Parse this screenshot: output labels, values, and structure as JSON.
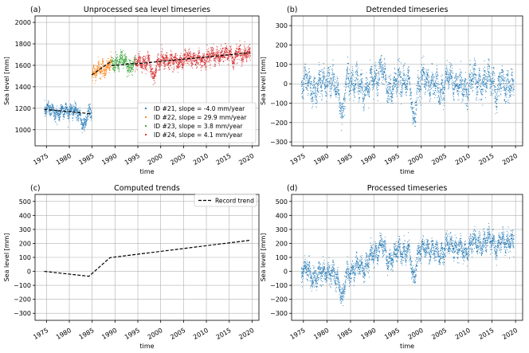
{
  "colors": {
    "series21": "#1f77b4",
    "series22": "#ff7f0e",
    "series23": "#2ca02c",
    "series24": "#d62728",
    "scatter": "#1f77b4",
    "trend": "#000000",
    "grid": "#b0b0b0"
  },
  "chart_data": [
    {
      "panel": "a",
      "type": "scatter",
      "label": "(a)",
      "title": "Unprocessed sea level timeseries",
      "xlabel": "time",
      "ylabel": "Sea level [mm]",
      "xlim": [
        1972.5,
        2021.5
      ],
      "ylim": [
        850,
        2060
      ],
      "xticks": [
        1975,
        1980,
        1985,
        1990,
        1995,
        2000,
        2005,
        2010,
        2015,
        2020
      ],
      "yticks": [
        1000,
        1200,
        1400,
        1600,
        1800,
        2000
      ],
      "grid": true,
      "legend_position": "lower-right",
      "series": [
        {
          "name": "ID #21, slope = -4.0 mm/year",
          "color_key": "series21",
          "x_range": [
            1974.5,
            1984.8
          ],
          "trend_start": 1190,
          "slope": -4.0,
          "noise": 55
        },
        {
          "name": "ID #22, slope = 29.9 mm/year",
          "color_key": "series22",
          "x_range": [
            1984.9,
            1989.2
          ],
          "trend_start": 1510,
          "slope": 29.9,
          "noise": 60
        },
        {
          "name": "ID #23, slope =  3.8 mm/year",
          "color_key": "series23",
          "x_range": [
            1989.2,
            1994.3
          ],
          "trend_start": 1598,
          "slope": 3.8,
          "noise": 55
        },
        {
          "name": "ID #24, slope =  4.1 mm/year",
          "color_key": "series24",
          "x_range": [
            1994.3,
            2019.6
          ],
          "trend_start": 1613,
          "slope": 4.1,
          "noise": 60
        }
      ]
    },
    {
      "panel": "b",
      "type": "scatter",
      "label": "(b)",
      "title": "Detrended timeseries",
      "xlabel": "time",
      "ylabel": "Sea level [mm]",
      "xlim": [
        1972.5,
        2021.5
      ],
      "ylim": [
        -320,
        350
      ],
      "xticks": [
        1975,
        1980,
        1985,
        1990,
        1995,
        2000,
        2005,
        2010,
        2015,
        2020
      ],
      "yticks": [
        -300,
        -200,
        -100,
        0,
        100,
        200,
        300
      ],
      "grid": true,
      "x_range": [
        1974.5,
        2019.6
      ],
      "trend_start": 0,
      "trend_end": 0
    },
    {
      "panel": "c",
      "type": "line",
      "label": "(c)",
      "title": "Computed trends",
      "xlabel": "time",
      "ylabel": "Sea level [mm]",
      "xlim": [
        1972.5,
        2021.5
      ],
      "ylim": [
        -350,
        550
      ],
      "xticks": [
        1975,
        1980,
        1985,
        1990,
        1995,
        2000,
        2005,
        2010,
        2015,
        2020
      ],
      "yticks": [
        -300,
        -200,
        -100,
        0,
        100,
        200,
        300,
        400,
        500
      ],
      "grid": true,
      "legend_position": "top-right",
      "series": [
        {
          "name": "Record trend",
          "x": [
            1974.5,
            1984.3,
            1988.9,
            2019.5
          ],
          "y": [
            0,
            -35,
            98,
            222
          ]
        }
      ]
    },
    {
      "panel": "d",
      "type": "scatter",
      "label": "(d)",
      "title": "Processed timeseries",
      "xlabel": "time",
      "ylabel": "Sea level [mm]",
      "xlim": [
        1972.5,
        2021.5
      ],
      "ylim": [
        -350,
        550
      ],
      "xticks": [
        1975,
        1980,
        1985,
        1990,
        1995,
        2000,
        2005,
        2010,
        2015,
        2020
      ],
      "yticks": [
        -300,
        -200,
        -100,
        0,
        100,
        200,
        300,
        400,
        500
      ],
      "grid": true,
      "x_range": [
        1974.5,
        2019.6
      ],
      "trend_points_x": [
        1974.5,
        1984.3,
        1988.9,
        2019.5
      ],
      "trend_points_y": [
        0,
        -35,
        98,
        222
      ]
    }
  ]
}
